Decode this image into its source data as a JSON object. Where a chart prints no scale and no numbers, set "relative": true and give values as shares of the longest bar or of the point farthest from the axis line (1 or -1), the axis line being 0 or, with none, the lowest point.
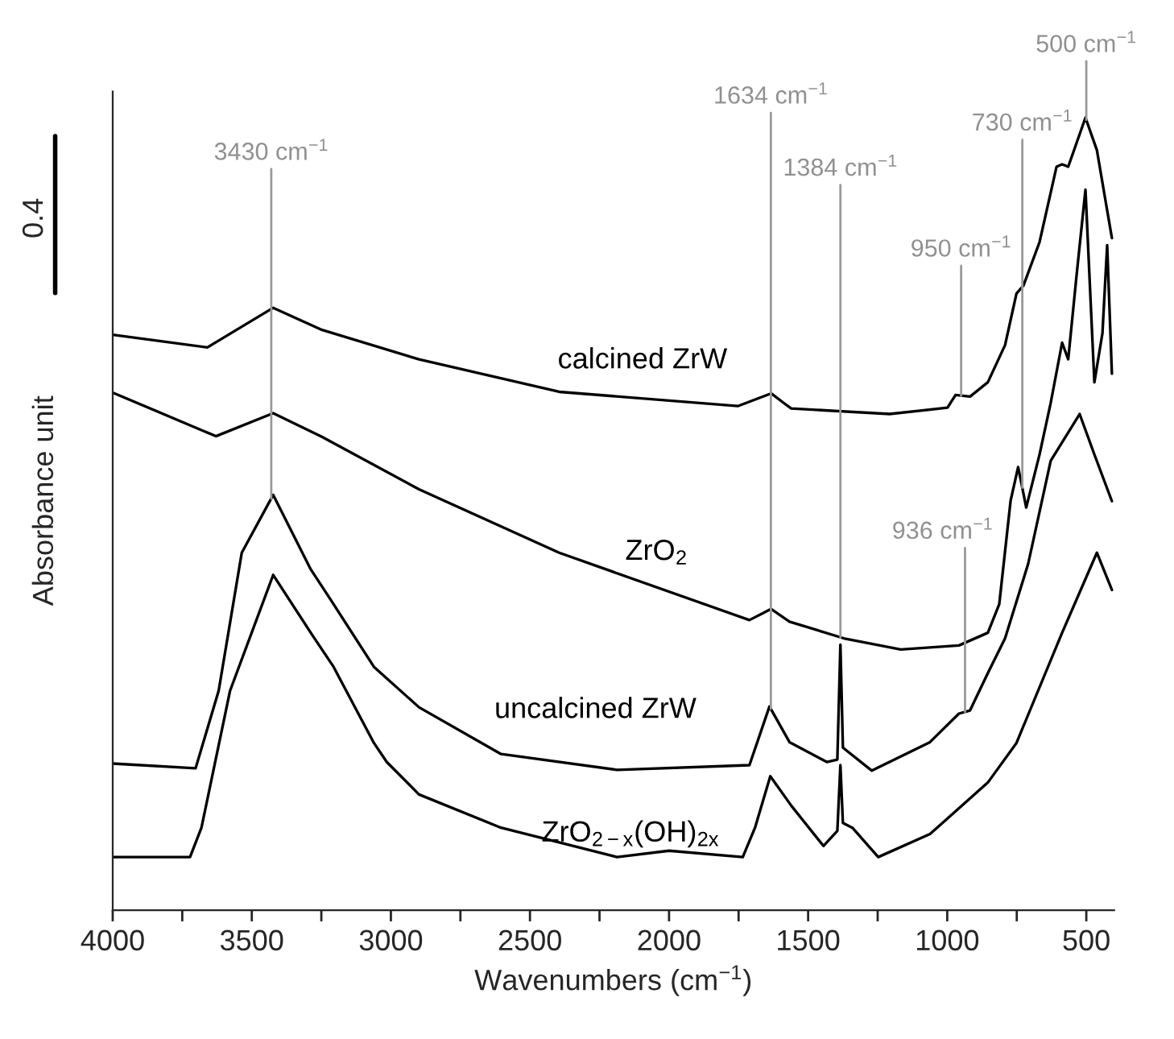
{
  "chart_data": {
    "type": "line",
    "relative": true,
    "xlabel": "Wavenumbers (cm$^{−1}$)",
    "ylabel": "Absorbance unit",
    "xlim": [
      4000,
      400
    ],
    "xticks": [
      4000,
      {
        "value": 3750,
        "label": null
      },
      3500,
      {
        "value": 3250,
        "label": null
      },
      3000,
      {
        "value": 2750,
        "label": null
      },
      2500,
      {
        "value": 2250,
        "label": null
      },
      2000,
      {
        "value": 1750,
        "label": null
      },
      1500,
      {
        "value": 1250,
        "label": null
      },
      1000,
      {
        "value": 750,
        "label": null
      },
      500
    ],
    "grid": false,
    "legend": false,
    "marker": "none",
    "line_style": "solid",
    "tick_labels": "x",
    "series": [
      {
        "name": "calcined ZrW",
        "color": "#000000",
        "x": [
          4000,
          3660,
          3423,
          3247,
          2899,
          2395,
          1753,
          1633,
          1588,
          1561,
          1207,
          999,
          970,
          918,
          854,
          792,
          751,
          726,
          668,
          607,
          587,
          565,
          503,
          462,
          408
        ],
        "values": [
          0.726,
          0.71,
          0.76,
          0.732,
          0.695,
          0.654,
          0.636,
          0.652,
          0.64,
          0.633,
          0.626,
          0.634,
          0.65,
          0.648,
          0.666,
          0.713,
          0.778,
          0.788,
          0.843,
          0.938,
          0.941,
          0.938,
          1.0,
          0.959,
          0.848
        ]
      },
      {
        "name": "ZrO$_{2}$",
        "color": "#000000",
        "x": [
          4000,
          3629,
          3423,
          3247,
          2899,
          2395,
          1711,
          1633,
          1567,
          1372,
          1167,
          958,
          854,
          813,
          772,
          745,
          716,
          668,
          628,
          587,
          565,
          535,
          503,
          471,
          442,
          425,
          408
        ],
        "values": [
          0.653,
          0.598,
          0.627,
          0.597,
          0.531,
          0.451,
          0.366,
          0.38,
          0.364,
          0.343,
          0.329,
          0.334,
          0.35,
          0.386,
          0.517,
          0.559,
          0.508,
          0.575,
          0.64,
          0.716,
          0.695,
          0.801,
          0.909,
          0.666,
          0.728,
          0.839,
          0.677
        ]
      },
      {
        "name": "uncalcined ZrW",
        "color": "#000000",
        "x": [
          4000,
          3702,
          3619,
          3536,
          3423,
          3288,
          3206,
          3061,
          2899,
          2604,
          2187,
          1711,
          1639,
          1567,
          1433,
          1395,
          1384,
          1375,
          1271,
          1062,
          958,
          918,
          854,
          792,
          709,
          628,
          524,
          471,
          408
        ],
        "values": [
          0.185,
          0.179,
          0.277,
          0.451,
          0.524,
          0.43,
          0.386,
          0.307,
          0.256,
          0.197,
          0.177,
          0.183,
          0.257,
          0.212,
          0.187,
          0.19,
          0.335,
          0.205,
          0.176,
          0.212,
          0.248,
          0.252,
          0.299,
          0.343,
          0.437,
          0.567,
          0.626,
          0.575,
          0.516
        ]
      },
      {
        "name": "ZrO$_{2−x}$(OH)$_{2x}$",
        "color": "#000000",
        "x": [
          4000,
          3722,
          3681,
          3578,
          3423,
          3288,
          3206,
          3061,
          3015,
          2899,
          2604,
          2187,
          2000,
          1735,
          1691,
          1636,
          1561,
          1445,
          1395,
          1384,
          1375,
          1341,
          1248,
          1062,
          854,
          751,
          587,
          462,
          408
        ],
        "values": [
          0.067,
          0.067,
          0.104,
          0.277,
          0.423,
          0.35,
          0.307,
          0.211,
          0.187,
          0.146,
          0.104,
          0.067,
          0.075,
          0.067,
          0.104,
          0.169,
          0.132,
          0.081,
          0.1,
          0.183,
          0.11,
          0.104,
          0.067,
          0.096,
          0.161,
          0.211,
          0.35,
          0.451,
          0.404
        ]
      }
    ],
    "annotations": [
      {
        "text": "3430 cm$^{−1}$",
        "x": 3430,
        "y": 0.519
      },
      {
        "text": "1634 cm$^{−1}$",
        "x": 1634,
        "y": 0.254
      },
      {
        "text": "1384 cm$^{−1}$",
        "x": 1384,
        "y": 0.344
      },
      {
        "text": "950 cm$^{−1}$",
        "x": 950,
        "y": 0.649
      },
      {
        "text": "730 cm$^{−1}$",
        "x": 730,
        "y": 0.533
      },
      {
        "text": "500 cm$^{−1}$",
        "x": 500,
        "y": 0.997
      },
      {
        "text": "936 cm$^{−1}$",
        "x": 936,
        "y": 0.25
      },
      "0.4"
    ]
  }
}
